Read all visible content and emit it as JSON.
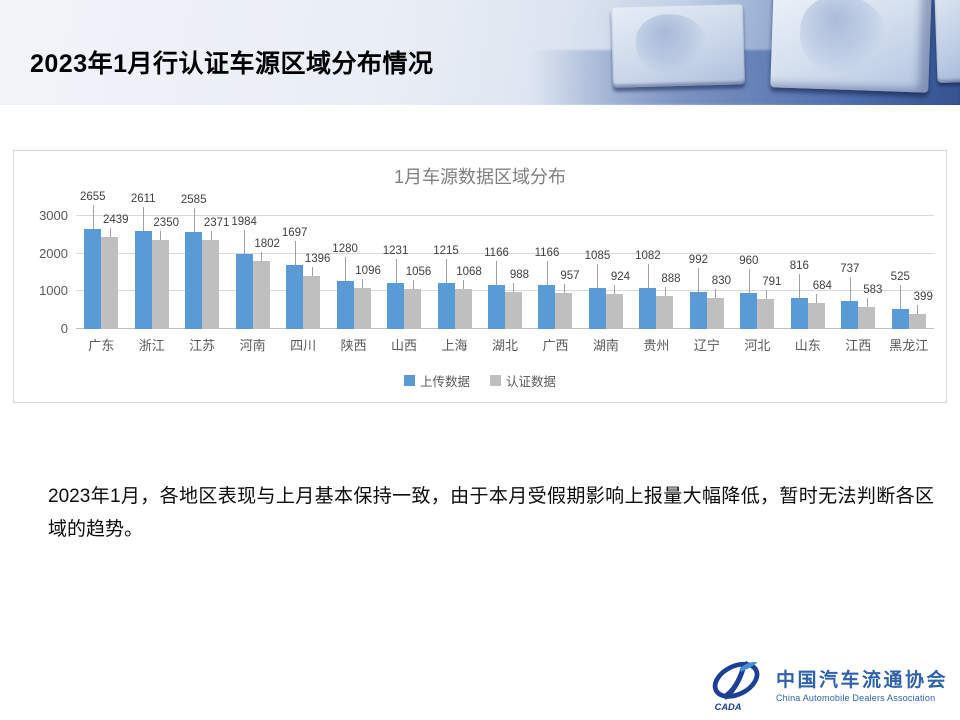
{
  "slide": {
    "title": "2023年1月行认证车源区域分布情况",
    "body_text": "2023年1月，各地区表现与上月基本保持一致，由于本月受假期影响上报量大幅降低，暂时无法判断各区域的趋势。"
  },
  "chart_data": {
    "type": "bar",
    "title": "1月车源数据区域分布",
    "categories": [
      "广东",
      "浙江",
      "江苏",
      "河南",
      "四川",
      "陕西",
      "山西",
      "上海",
      "湖北",
      "广西",
      "湖南",
      "贵州",
      "辽宁",
      "河北",
      "山东",
      "江西",
      "黑龙江"
    ],
    "series": [
      {
        "name": "上传数据",
        "color": "#5B9BD5",
        "values": [
          2655,
          2611,
          2585,
          1984,
          1697,
          1280,
          1231,
          1215,
          1166,
          1166,
          1085,
          1082,
          992,
          960,
          816,
          737,
          525
        ]
      },
      {
        "name": "认证数据",
        "color": "#BFBFBF",
        "values": [
          2439,
          2350,
          2371,
          1802,
          1396,
          1096,
          1056,
          1068,
          988,
          957,
          924,
          888,
          830,
          791,
          684,
          583,
          399
        ]
      }
    ],
    "y_ticks": [
      0,
      1000,
      2000,
      3000
    ],
    "ylim": [
      0,
      3000
    ],
    "grid": true,
    "legend_position": "bottom",
    "axis_text_color": "#595959",
    "title_color": "#7f7f7f"
  },
  "logo": {
    "name_zh": "中国汽车流通协会",
    "name_en": "China Automobile Dealers Association",
    "abbr": "CADA",
    "color": "#1d3f96"
  }
}
